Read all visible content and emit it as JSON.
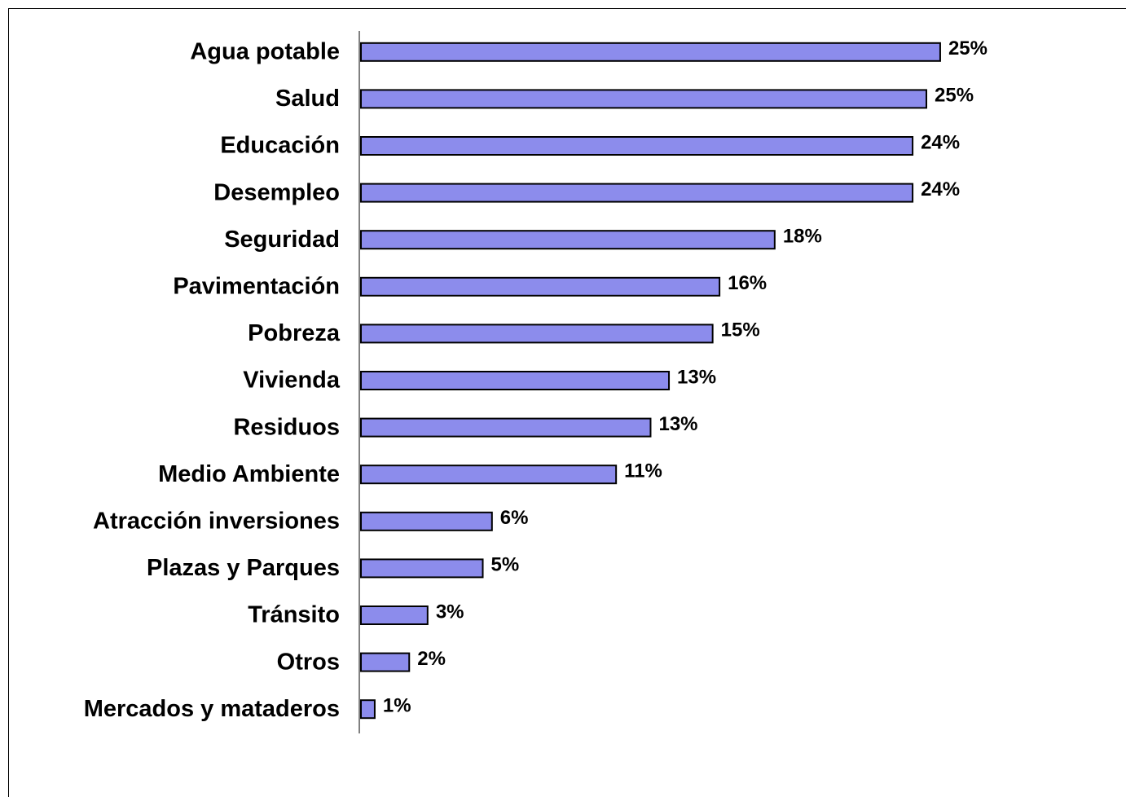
{
  "chart_data": {
    "type": "hbar",
    "categories": [
      "Agua potable",
      "Salud",
      "Educación",
      "Desempleo",
      "Seguridad",
      "Pavimentación",
      "Pobreza",
      "Vivienda",
      "Residuos",
      "Medio Ambiente",
      "Atracción inversiones",
      "Plazas y Parques",
      "Tránsito",
      "Otros",
      "Mercados y mataderos"
    ],
    "values": [
      25.2,
      24.6,
      24.0,
      24.0,
      18.0,
      15.6,
      15.3,
      13.4,
      12.6,
      11.1,
      5.7,
      5.3,
      2.9,
      2.1,
      0.6
    ],
    "value_labels": [
      "25%",
      "25%",
      "24%",
      "24%",
      "18%",
      "16%",
      "15%",
      "13%",
      "13%",
      "11%",
      "6%",
      "5%",
      "3%",
      "2%",
      "1%"
    ],
    "color": "#8c8cec",
    "xlim": [
      0,
      33
    ]
  }
}
